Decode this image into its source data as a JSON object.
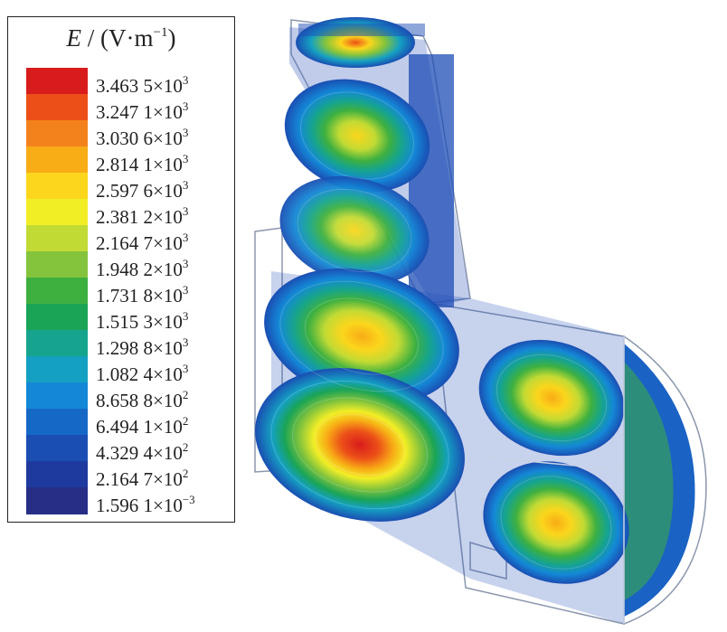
{
  "legend": {
    "title_var": "E",
    "title_sep": "/",
    "title_unit_open": "(V·m",
    "title_unit_exp": "−1",
    "title_unit_close": ")",
    "levels": [
      {
        "mantissa": "3.463 5",
        "exponent": "3",
        "color": "#d81c1c"
      },
      {
        "mantissa": "3.247 1",
        "exponent": "3",
        "color": "#ec5018"
      },
      {
        "mantissa": "3.030 6",
        "exponent": "3",
        "color": "#f4821c"
      },
      {
        "mantissa": "2.814 1",
        "exponent": "3",
        "color": "#f8ac16"
      },
      {
        "mantissa": "2.597 6",
        "exponent": "3",
        "color": "#fbd61c"
      },
      {
        "mantissa": "2.381 2",
        "exponent": "3",
        "color": "#f2ee26"
      },
      {
        "mantissa": "2.164 7",
        "exponent": "3",
        "color": "#c2da34"
      },
      {
        "mantissa": "1.948 2",
        "exponent": "3",
        "color": "#84c43c"
      },
      {
        "mantissa": "1.731 8",
        "exponent": "3",
        "color": "#3eb040"
      },
      {
        "mantissa": "1.515 3",
        "exponent": "3",
        "color": "#1aa456"
      },
      {
        "mantissa": "1.298 8",
        "exponent": "3",
        "color": "#16a48e"
      },
      {
        "mantissa": "1.082 4",
        "exponent": "3",
        "color": "#14a0c2"
      },
      {
        "mantissa": "8.658 8",
        "exponent": "2",
        "color": "#1488d6"
      },
      {
        "mantissa": "6.494 1",
        "exponent": "2",
        "color": "#1668c6"
      },
      {
        "mantissa": "4.329 4",
        "exponent": "2",
        "color": "#1a4eb2"
      },
      {
        "mantissa": "2.164 7",
        "exponent": "2",
        "color": "#1e3a9e"
      },
      {
        "mantissa": "1.596 1",
        "exponent": "−3",
        "color": "#262e86"
      }
    ]
  },
  "figure": {
    "colors": {
      "outline": "#7a8aa6",
      "body_blue": "#1e4db6",
      "hot": "#d81c1c"
    }
  }
}
